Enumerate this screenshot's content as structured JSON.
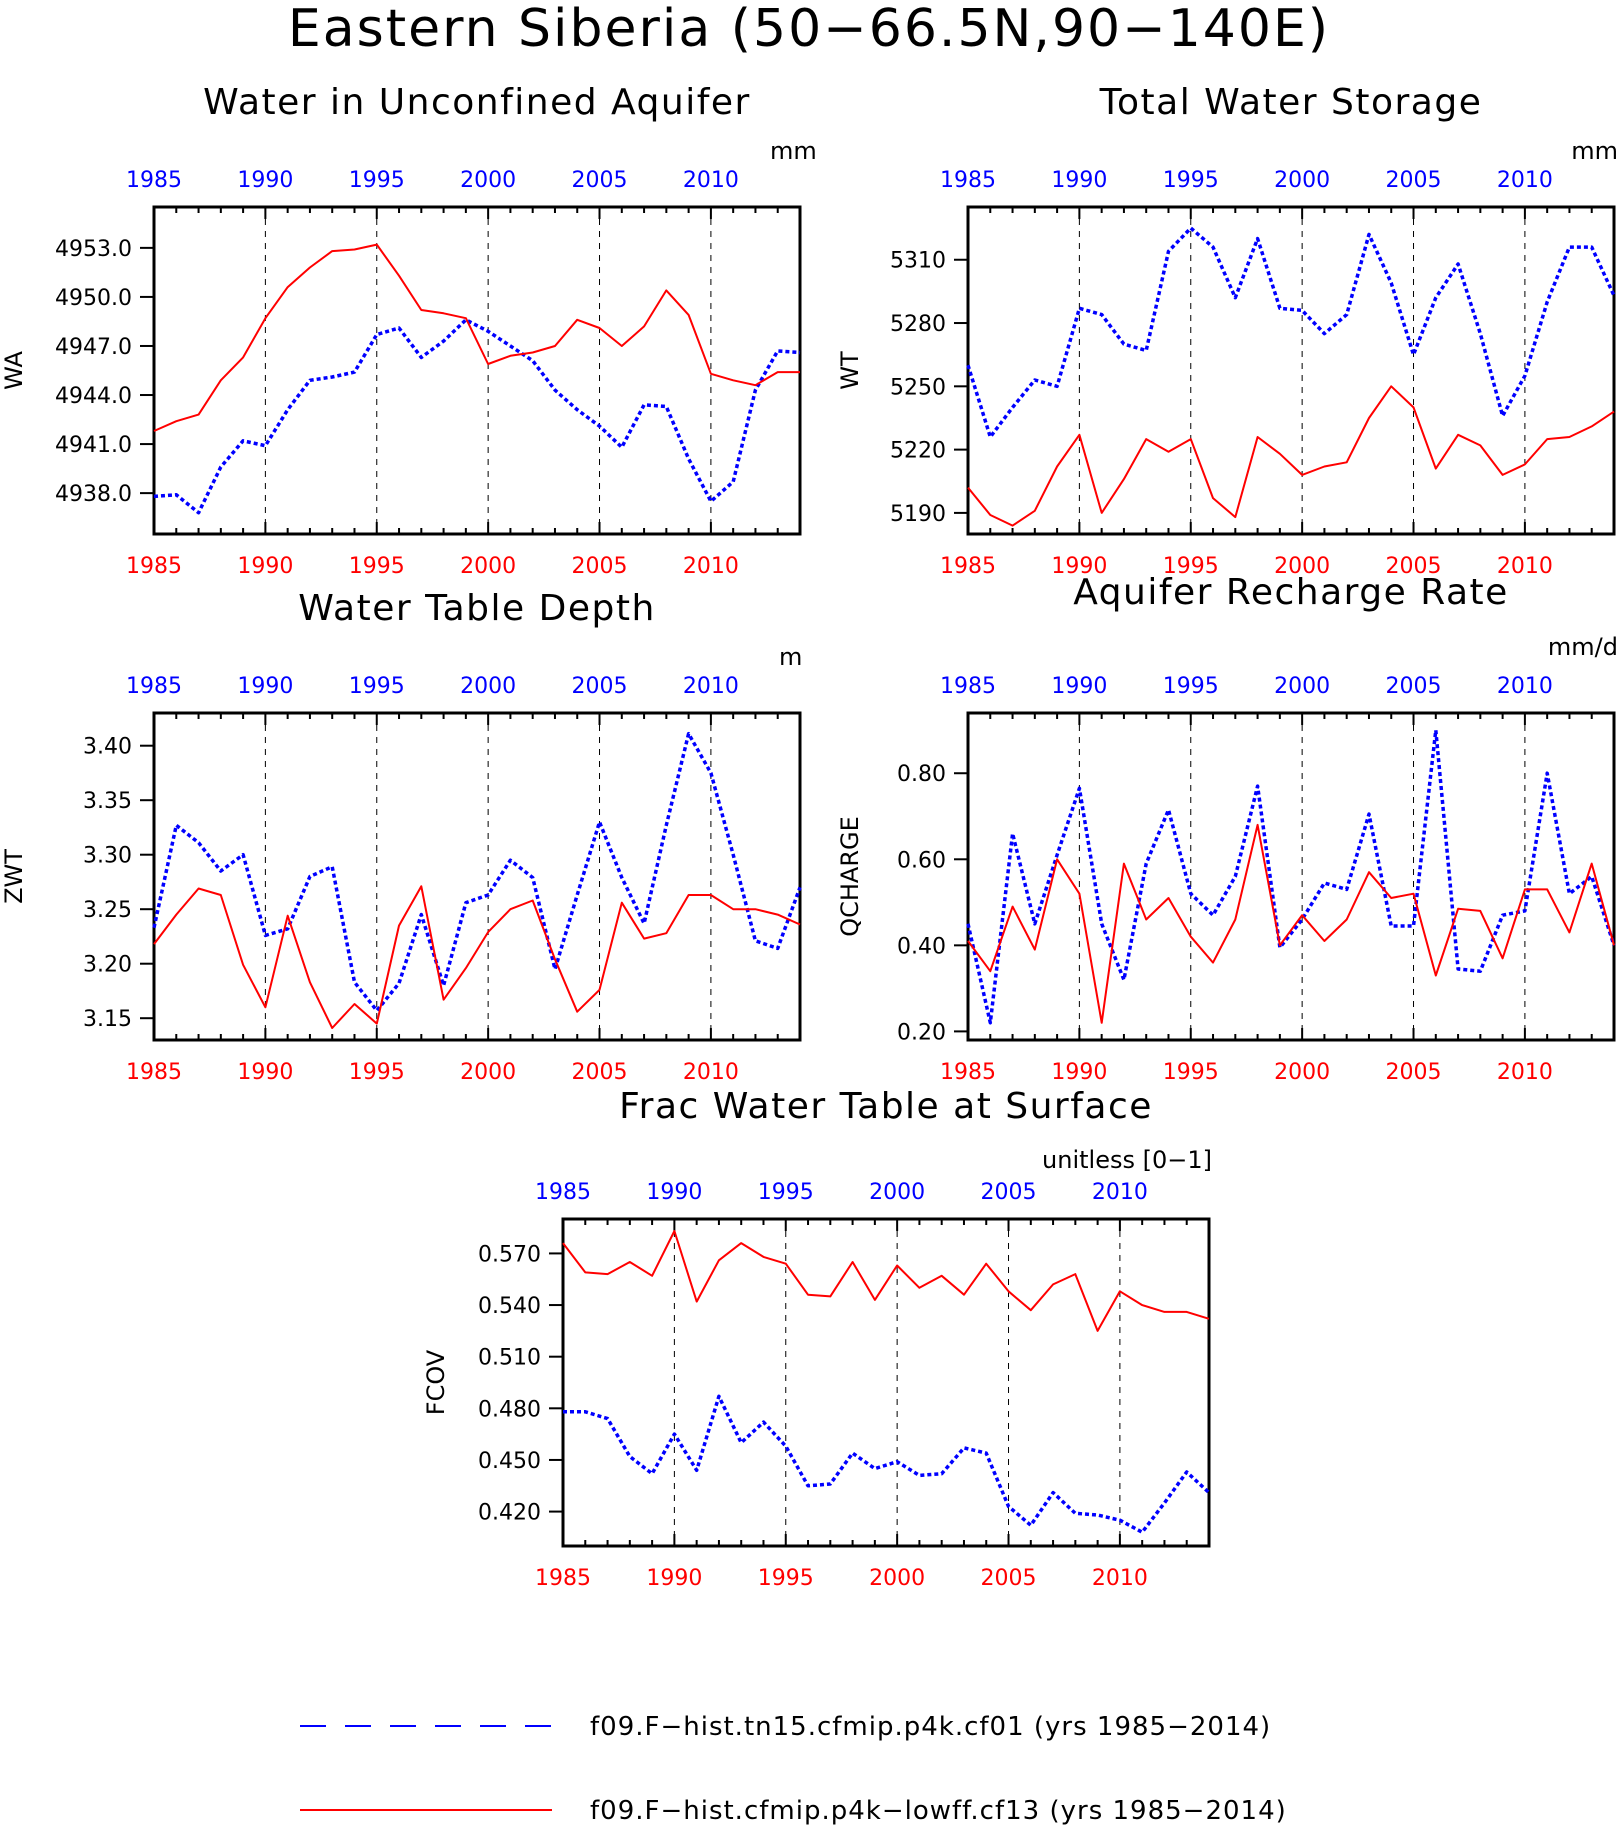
{
  "figure": {
    "title": "Eastern Siberia (50−66.5N,90−140E)",
    "legend": [
      {
        "label": "f09.F−hist.tn15.cfmip.p4k.cf01 (yrs 1985−2014)",
        "color": "#0000ff",
        "style": "dashed"
      },
      {
        "label": "f09.F−hist.cfmip.p4k−lowff.cf13 (yrs 1985−2014)",
        "color": "#ff0000",
        "style": "solid"
      }
    ]
  },
  "chart_data": [
    {
      "type": "line",
      "title": "Water in Unconfined Aquifer",
      "ylabel": "WA",
      "units": "mm",
      "ylim": [
        4935.5,
        4955.5
      ],
      "yticks": [
        4938.0,
        4941.0,
        4944.0,
        4947.0,
        4950.0,
        4953.0
      ],
      "ytick_labels": [
        "4938.0",
        "4941.0",
        "4944.0",
        "4947.0",
        "4950.0",
        "4953.0"
      ],
      "x": [
        1985,
        1986,
        1987,
        1988,
        1989,
        1990,
        1991,
        1992,
        1993,
        1994,
        1995,
        1996,
        1997,
        1998,
        1999,
        2000,
        2001,
        2002,
        2003,
        2004,
        2005,
        2006,
        2007,
        2008,
        2009,
        2010,
        2011,
        2012,
        2013,
        2014
      ],
      "xlim": [
        1985,
        2014
      ],
      "xticks": [
        1985,
        1990,
        1995,
        2000,
        2005,
        2010
      ],
      "xtick_labels": [
        "1985",
        "1990",
        "1995",
        "2000",
        "2005",
        "2010"
      ],
      "grid": "vertical dashed at 1990, 1995, 2000, 2005, 2010",
      "series": [
        {
          "color": "#0000ff",
          "style": "dotted",
          "values": [
            4937.8,
            4937.9,
            4936.8,
            4939.6,
            4941.2,
            4940.9,
            4943.1,
            4944.9,
            4945.1,
            4945.4,
            4947.7,
            4948.1,
            4946.3,
            4947.3,
            4948.6,
            4947.9,
            4947.0,
            4946.1,
            4944.3,
            4943.1,
            4942.1,
            4940.8,
            4943.4,
            4943.3,
            4940.1,
            4937.5,
            4938.7,
            4944.3,
            4946.7,
            4946.6
          ]
        },
        {
          "color": "#ff0000",
          "style": "solid",
          "values": [
            4941.8,
            4942.4,
            4942.8,
            4944.9,
            4946.3,
            4948.7,
            4950.6,
            4951.8,
            4952.8,
            4952.9,
            4953.2,
            4951.3,
            4949.2,
            4949.0,
            4948.7,
            4945.9,
            4946.4,
            4946.6,
            4947.0,
            4948.6,
            4948.1,
            4947.0,
            4948.2,
            4950.4,
            4948.9,
            4945.3,
            4944.9,
            4944.6,
            4945.4,
            4945.4
          ]
        }
      ]
    },
    {
      "type": "line",
      "title": "Total Water Storage",
      "ylabel": "WT",
      "units": "mm",
      "ylim": [
        5180,
        5335
      ],
      "yticks": [
        5190,
        5220,
        5250,
        5280,
        5310
      ],
      "ytick_labels": [
        "5190",
        "5220",
        "5250",
        "5280",
        "5310"
      ],
      "x": [
        1985,
        1986,
        1987,
        1988,
        1989,
        1990,
        1991,
        1992,
        1993,
        1994,
        1995,
        1996,
        1997,
        1998,
        1999,
        2000,
        2001,
        2002,
        2003,
        2004,
        2005,
        2006,
        2007,
        2008,
        2009,
        2010,
        2011,
        2012,
        2013,
        2014
      ],
      "xlim": [
        1985,
        2014
      ],
      "xticks": [
        1985,
        1990,
        1995,
        2000,
        2005,
        2010
      ],
      "xtick_labels": [
        "1985",
        "1990",
        "1995",
        "2000",
        "2005",
        "2010"
      ],
      "grid": "vertical dashed at 1990, 1995, 2000, 2005, 2010",
      "series": [
        {
          "color": "#0000ff",
          "style": "dotted",
          "values": [
            5260,
            5226,
            5240,
            5253,
            5250,
            5287,
            5284,
            5270,
            5267,
            5314,
            5325,
            5316,
            5292,
            5320,
            5287,
            5286,
            5275,
            5284,
            5322,
            5299,
            5265,
            5292,
            5308,
            5275,
            5236,
            5255,
            5290,
            5316,
            5316,
            5293
          ]
        },
        {
          "color": "#ff0000",
          "style": "solid",
          "values": [
            5202,
            5189,
            5184,
            5191,
            5212,
            5227,
            5190,
            5206,
            5225,
            5219,
            5225,
            5197,
            5188,
            5226,
            5218,
            5208,
            5212,
            5214,
            5235,
            5250,
            5240,
            5211,
            5227,
            5222,
            5208,
            5213,
            5225,
            5226,
            5231,
            5238
          ]
        }
      ]
    },
    {
      "type": "line",
      "title": "Water Table Depth",
      "ylabel": "ZWT",
      "units": "m",
      "ylim": [
        3.13,
        3.43
      ],
      "yticks": [
        3.15,
        3.2,
        3.25,
        3.3,
        3.35,
        3.4
      ],
      "ytick_labels": [
        "3.15",
        "3.20",
        "3.25",
        "3.30",
        "3.35",
        "3.40"
      ],
      "x": [
        1985,
        1986,
        1987,
        1988,
        1989,
        1990,
        1991,
        1992,
        1993,
        1994,
        1995,
        1996,
        1997,
        1998,
        1999,
        2000,
        2001,
        2002,
        2003,
        2004,
        2005,
        2006,
        2007,
        2008,
        2009,
        2010,
        2011,
        2012,
        2013,
        2014
      ],
      "xlim": [
        1985,
        2014
      ],
      "xticks": [
        1985,
        1990,
        1995,
        2000,
        2005,
        2010
      ],
      "xtick_labels": [
        "1985",
        "1990",
        "1995",
        "2000",
        "2005",
        "2010"
      ],
      "grid": "vertical dashed at 1990, 1995, 2000, 2005, 2010",
      "series": [
        {
          "color": "#0000ff",
          "style": "dotted",
          "values": [
            3.233,
            3.327,
            3.311,
            3.285,
            3.3,
            3.226,
            3.232,
            3.28,
            3.289,
            3.183,
            3.157,
            3.182,
            3.245,
            3.18,
            3.256,
            3.263,
            3.295,
            3.279,
            3.195,
            3.263,
            3.33,
            3.279,
            3.237,
            3.327,
            3.411,
            3.375,
            3.3,
            3.221,
            3.214,
            3.27
          ]
        },
        {
          "color": "#ff0000",
          "style": "solid",
          "values": [
            3.218,
            3.245,
            3.269,
            3.263,
            3.199,
            3.16,
            3.244,
            3.183,
            3.141,
            3.163,
            3.145,
            3.235,
            3.271,
            3.167,
            3.196,
            3.229,
            3.25,
            3.258,
            3.204,
            3.156,
            3.176,
            3.256,
            3.223,
            3.228,
            3.263,
            3.263,
            3.25,
            3.25,
            3.245,
            3.236
          ]
        }
      ]
    },
    {
      "type": "line",
      "title": "Aquifer Recharge Rate",
      "ylabel": "QCHARGE",
      "units": "mm/d",
      "ylim": [
        0.18,
        0.94
      ],
      "yticks": [
        0.2,
        0.4,
        0.6,
        0.8
      ],
      "ytick_labels": [
        "0.20",
        "0.40",
        "0.60",
        "0.80"
      ],
      "x": [
        1985,
        1986,
        1987,
        1988,
        1989,
        1990,
        1991,
        1992,
        1993,
        1994,
        1995,
        1996,
        1997,
        1998,
        1999,
        2000,
        2001,
        2002,
        2003,
        2004,
        2005,
        2006,
        2007,
        2008,
        2009,
        2010,
        2011,
        2012,
        2013,
        2014
      ],
      "xlim": [
        1985,
        2014
      ],
      "xticks": [
        1985,
        1990,
        1995,
        2000,
        2005,
        2010
      ],
      "xtick_labels": [
        "1985",
        "1990",
        "1995",
        "2000",
        "2005",
        "2010"
      ],
      "grid": "vertical dashed at 1990, 1995, 2000, 2005, 2010",
      "series": [
        {
          "color": "#0000ff",
          "style": "dotted",
          "values": [
            0.45,
            0.22,
            0.66,
            0.45,
            0.61,
            0.765,
            0.45,
            0.32,
            0.59,
            0.715,
            0.52,
            0.47,
            0.56,
            0.77,
            0.395,
            0.46,
            0.545,
            0.53,
            0.705,
            0.445,
            0.445,
            0.9,
            0.345,
            0.34,
            0.47,
            0.48,
            0.8,
            0.52,
            0.56,
            0.4
          ]
        },
        {
          "color": "#ff0000",
          "style": "solid",
          "values": [
            0.41,
            0.34,
            0.49,
            0.39,
            0.6,
            0.52,
            0.22,
            0.59,
            0.46,
            0.51,
            0.42,
            0.36,
            0.46,
            0.68,
            0.4,
            0.47,
            0.41,
            0.46,
            0.57,
            0.51,
            0.52,
            0.33,
            0.485,
            0.48,
            0.37,
            0.53,
            0.53,
            0.43,
            0.59,
            0.4
          ]
        }
      ]
    },
    {
      "type": "line",
      "title": "Frac Water Table at Surface",
      "ylabel": "FCOV",
      "units": "unitless [0−1]",
      "ylim": [
        0.4,
        0.59
      ],
      "yticks": [
        0.42,
        0.45,
        0.48,
        0.51,
        0.54,
        0.57
      ],
      "ytick_labels": [
        "0.420",
        "0.450",
        "0.480",
        "0.510",
        "0.540",
        "0.570"
      ],
      "x": [
        1985,
        1986,
        1987,
        1988,
        1989,
        1990,
        1991,
        1992,
        1993,
        1994,
        1995,
        1996,
        1997,
        1998,
        1999,
        2000,
        2001,
        2002,
        2003,
        2004,
        2005,
        2006,
        2007,
        2008,
        2009,
        2010,
        2011,
        2012,
        2013,
        2014
      ],
      "xlim": [
        1985,
        2014
      ],
      "xticks": [
        1985,
        1990,
        1995,
        2000,
        2005,
        2010
      ],
      "xtick_labels": [
        "1985",
        "1990",
        "1995",
        "2000",
        "2005",
        "2010"
      ],
      "grid": "vertical dashed at 1990, 1995, 2000, 2005, 2010",
      "series": [
        {
          "color": "#0000ff",
          "style": "dotted",
          "values": [
            0.478,
            0.478,
            0.474,
            0.452,
            0.442,
            0.465,
            0.444,
            0.487,
            0.46,
            0.472,
            0.458,
            0.435,
            0.436,
            0.454,
            0.445,
            0.449,
            0.441,
            0.442,
            0.457,
            0.454,
            0.423,
            0.412,
            0.431,
            0.419,
            0.418,
            0.415,
            0.408,
            0.425,
            0.443,
            0.431
          ]
        },
        {
          "color": "#ff0000",
          "style": "solid",
          "values": [
            0.576,
            0.559,
            0.558,
            0.565,
            0.557,
            0.583,
            0.542,
            0.566,
            0.576,
            0.568,
            0.564,
            0.546,
            0.545,
            0.565,
            0.543,
            0.563,
            0.55,
            0.557,
            0.546,
            0.564,
            0.548,
            0.537,
            0.552,
            0.558,
            0.525,
            0.548,
            0.54,
            0.536,
            0.536,
            0.532
          ]
        }
      ]
    }
  ]
}
